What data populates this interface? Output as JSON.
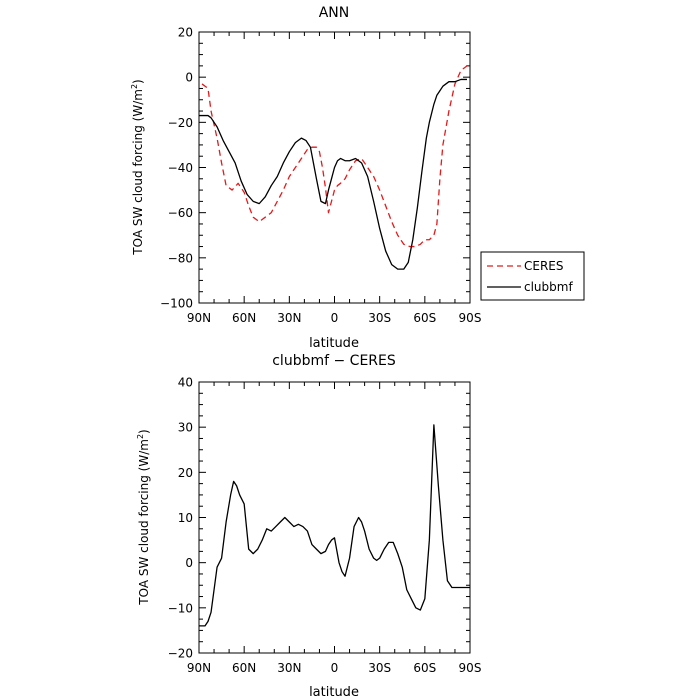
{
  "chart_data": [
    {
      "type": "line",
      "title": "ANN",
      "xlabel": "latitude",
      "ylabel": "TOA SW cloud forcing (W/m",
      "ylabel_superscript": "2",
      "ylabel_suffix": ")",
      "xlim": [
        -90,
        90
      ],
      "ylim": [
        -100,
        20
      ],
      "x_reversed": true,
      "x_ticks": [
        90,
        60,
        30,
        0,
        -30,
        -60,
        -90
      ],
      "x_tick_labels": [
        "90N",
        "60N",
        "30N",
        "0",
        "30S",
        "60S",
        "90S"
      ],
      "y_ticks": [
        -100,
        -80,
        -60,
        -40,
        -20,
        0,
        20
      ],
      "y_tick_labels": [
        "−100",
        "−80",
        "−60",
        "−40",
        "−20",
        "0",
        "20"
      ],
      "legend_position": "right",
      "series": [
        {
          "name": "CERES",
          "color": "#e41a1c",
          "dash": "dashed",
          "x": [
            88,
            84,
            82,
            78,
            75,
            72,
            68,
            64,
            60,
            57,
            54,
            50,
            46,
            42,
            38,
            34,
            30,
            26,
            22,
            18,
            15,
            12,
            10,
            8,
            6,
            4,
            2,
            0,
            -2,
            -4,
            -7,
            -10,
            -14,
            -18,
            -22,
            -26,
            -30,
            -34,
            -38,
            -42,
            -46,
            -50,
            -54,
            -57,
            -60,
            -63,
            -66,
            -68,
            -70,
            -72,
            -76,
            -80,
            -84,
            -88
          ],
          "y": [
            -3,
            -5,
            -15,
            -27,
            -38,
            -48,
            -50,
            -47,
            -51,
            -57,
            -62,
            -64,
            -62,
            -60,
            -55,
            -50,
            -44,
            -40,
            -36,
            -32,
            -31,
            -31,
            -33,
            -40,
            -49,
            -60,
            -55,
            -50,
            -48,
            -47,
            -45,
            -41,
            -37,
            -36,
            -40,
            -44,
            -50,
            -57,
            -64,
            -70,
            -74,
            -75,
            -75,
            -74,
            -72,
            -72,
            -70,
            -65,
            -45,
            -30,
            -15,
            -3,
            3,
            5
          ]
        },
        {
          "name": "clubbmf",
          "color": "#000000",
          "dash": "solid",
          "x": [
            90,
            84,
            82,
            78,
            74,
            70,
            66,
            62,
            58,
            54,
            50,
            46,
            42,
            38,
            34,
            30,
            26,
            22,
            19,
            16,
            12,
            9,
            6,
            4,
            2,
            0,
            -2,
            -4,
            -7,
            -10,
            -14,
            -18,
            -22,
            -26,
            -30,
            -34,
            -38,
            -42,
            -46,
            -49,
            -52,
            -55,
            -58,
            -61,
            -63,
            -66,
            -68,
            -70,
            -72,
            -76,
            -80,
            -84,
            -88
          ],
          "y": [
            -17,
            -17,
            -18,
            -22,
            -28,
            -33,
            -38,
            -46,
            -52,
            -55,
            -56,
            -53,
            -48,
            -44,
            -38,
            -33,
            -29,
            -27,
            -28,
            -31,
            -45,
            -55,
            -56,
            -50,
            -45,
            -40,
            -37,
            -36,
            -37,
            -37,
            -36,
            -38,
            -44,
            -55,
            -67,
            -77,
            -83,
            -85,
            -85,
            -82,
            -72,
            -58,
            -42,
            -27,
            -20,
            -12,
            -8,
            -6,
            -4,
            -2,
            -2,
            -1,
            -1
          ]
        }
      ]
    },
    {
      "type": "line",
      "title": "clubbmf − CERES",
      "xlabel": "latitude",
      "ylabel": "TOA SW cloud forcing (W/m",
      "ylabel_superscript": "2",
      "ylabel_suffix": ")",
      "xlim": [
        -90,
        90
      ],
      "ylim": [
        -20,
        40
      ],
      "x_reversed": true,
      "x_ticks": [
        90,
        60,
        30,
        0,
        -30,
        -60,
        -90
      ],
      "x_tick_labels": [
        "90N",
        "60N",
        "30N",
        "0",
        "30S",
        "60S",
        "90S"
      ],
      "y_ticks": [
        -20,
        -10,
        0,
        10,
        20,
        30,
        40
      ],
      "y_tick_labels": [
        "−20",
        "−10",
        "0",
        "10",
        "20",
        "30",
        "40"
      ],
      "series": [
        {
          "name": "",
          "color": "#000000",
          "dash": "solid",
          "x": [
            90,
            88,
            86,
            84,
            82,
            78,
            75,
            72,
            69,
            67,
            65,
            63,
            60,
            57,
            54,
            51,
            48,
            45,
            42,
            39,
            36,
            33,
            30,
            27,
            24,
            21,
            18,
            15,
            12,
            9,
            6,
            4,
            2,
            0,
            -3,
            -5,
            -7,
            -10,
            -13,
            -16,
            -18,
            -20,
            -23,
            -26,
            -28,
            -30,
            -33,
            -36,
            -39,
            -42,
            -45,
            -48,
            -51,
            -54,
            -57,
            -60,
            -63,
            -66,
            -69,
            -72,
            -75,
            -78,
            -81,
            -84,
            -88,
            -90
          ],
          "y": [
            -14,
            -14,
            -14,
            -13,
            -11,
            -1,
            1,
            9,
            15,
            18,
            17,
            15,
            13,
            3,
            2,
            3,
            5,
            7.5,
            7,
            8,
            9,
            10,
            9,
            8,
            8.5,
            8,
            7,
            4,
            3,
            2,
            2.5,
            4,
            5,
            5.5,
            0,
            -2,
            -3,
            1,
            8,
            10,
            9,
            7,
            3,
            1,
            0.5,
            1,
            3,
            4.5,
            4.5,
            2,
            -1,
            -6,
            -8,
            -10,
            -10.5,
            -8,
            5,
            30.5,
            17,
            5,
            -4,
            -5.5,
            -5.5,
            -5.5,
            -5.5,
            -5.5
          ]
        }
      ]
    }
  ]
}
